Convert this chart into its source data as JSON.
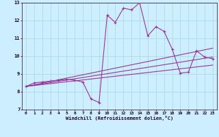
{
  "xlabel": "Windchill (Refroidissement éolien,°C)",
  "bg_color": "#cceeff",
  "line_color": "#993399",
  "xlim": [
    -0.5,
    23.5
  ],
  "ylim": [
    7,
    13
  ],
  "xticks": [
    0,
    1,
    2,
    3,
    4,
    5,
    6,
    7,
    8,
    9,
    10,
    11,
    12,
    13,
    14,
    15,
    16,
    17,
    18,
    19,
    20,
    21,
    22,
    23
  ],
  "yticks": [
    7,
    8,
    9,
    10,
    11,
    12,
    13
  ],
  "grid_color": "#aadddd",
  "main_x": [
    0,
    1,
    2,
    3,
    4,
    5,
    6,
    7,
    8,
    9,
    10,
    11,
    12,
    13,
    14,
    15,
    16,
    17,
    18,
    19,
    20,
    21,
    22,
    23
  ],
  "main_y": [
    8.3,
    8.5,
    8.55,
    8.6,
    8.65,
    8.7,
    8.65,
    8.55,
    7.6,
    7.4,
    12.3,
    11.9,
    12.7,
    12.6,
    13.0,
    11.15,
    11.65,
    11.4,
    10.4,
    9.05,
    9.1,
    10.3,
    9.95,
    9.85
  ],
  "trend_lines": [
    {
      "x": [
        0,
        23
      ],
      "y": [
        8.3,
        10.45
      ]
    },
    {
      "x": [
        0,
        23
      ],
      "y": [
        8.3,
        9.95
      ]
    },
    {
      "x": [
        0,
        23
      ],
      "y": [
        8.3,
        9.5
      ]
    }
  ]
}
